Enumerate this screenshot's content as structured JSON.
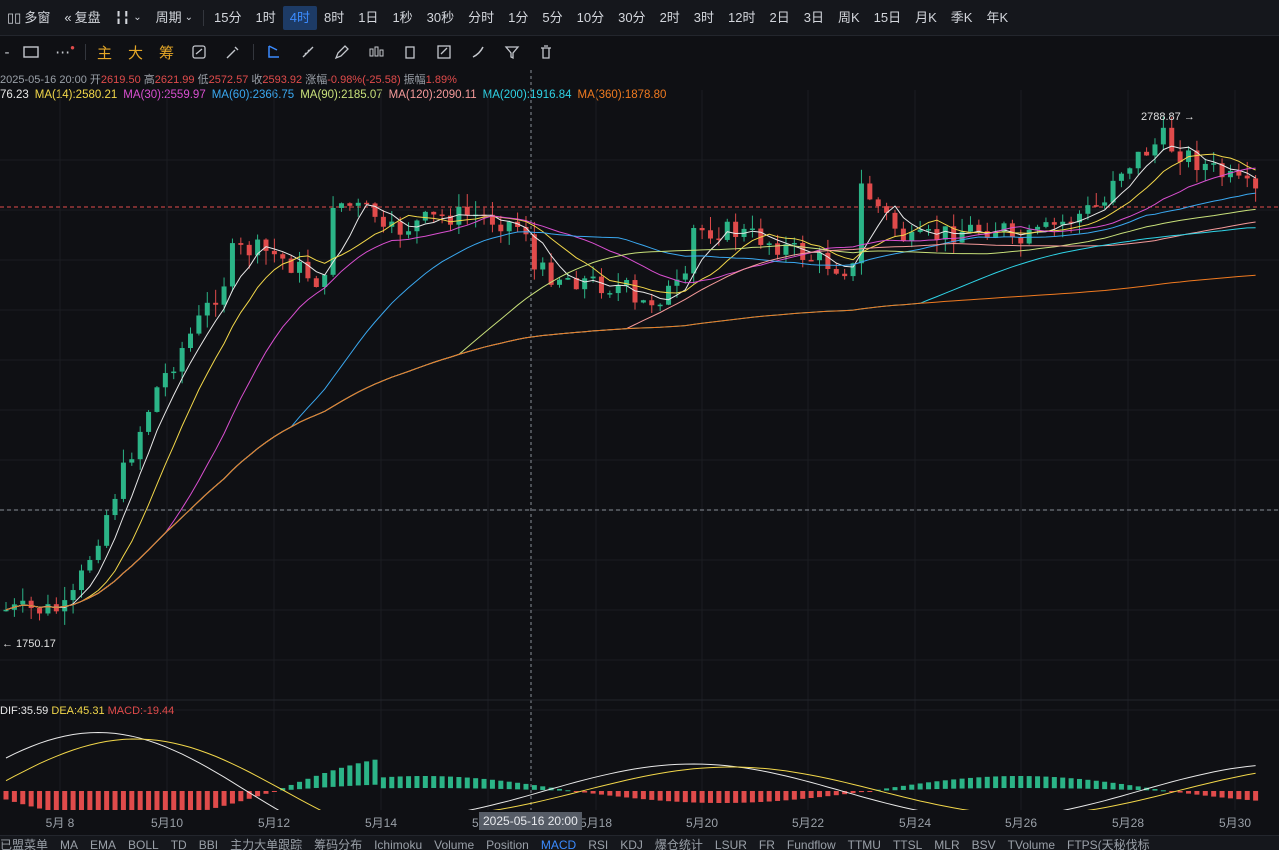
{
  "toolbar": {
    "multi_window": "多窗",
    "replay": "复盘",
    "period": "周期",
    "intervals": [
      "15分",
      "1时",
      "4时",
      "8时",
      "1日",
      "1秒",
      "30秒",
      "分时",
      "1分",
      "5分",
      "10分",
      "30分",
      "2时",
      "3时",
      "12时",
      "2日",
      "3日",
      "周K",
      "15日",
      "月K",
      "季K",
      "年K"
    ],
    "active_interval": "4时"
  },
  "toolbar2": {
    "chars": [
      "主",
      "大",
      "筹"
    ]
  },
  "info": {
    "date": "2025-05-16 20:00",
    "open_label": "开",
    "open": "2619.50",
    "high_label": "高",
    "high": "2621.99",
    "low_label": "低",
    "low": "2572.57",
    "close_label": "收",
    "close": "2593.92",
    "change_label": "涨幅",
    "change": "-0.98%(-25.58)",
    "amp_label": "振幅",
    "amp": "1.89%"
  },
  "ma": [
    {
      "label": "76.23",
      "color": "#e8e8e8"
    },
    {
      "label": "MA(14):2580.21",
      "color": "#f2d74a"
    },
    {
      "label": "MA(30):2559.97",
      "color": "#d94fd0"
    },
    {
      "label": "MA(60):2366.75",
      "color": "#3aa8f0"
    },
    {
      "label": "MA(90):2185.07",
      "color": "#c8e07a"
    },
    {
      "label": "MA(120):2090.11",
      "color": "#f59a9a"
    },
    {
      "label": "MA(200):1916.84",
      "color": "#2fd3e6"
    },
    {
      "label": "MA(360):1878.80",
      "color": "#f07a20"
    }
  ],
  "macd": {
    "dif": "DIF:35.59",
    "dea": "DEA:45.31",
    "macd": "MACD:-19.44",
    "dif_color": "#e8e8e8",
    "dea_color": "#f2d74a",
    "macd_color": "#e04b4b"
  },
  "price_labels": {
    "high_marker": "2788.87",
    "low_marker": "1750.17"
  },
  "xaxis": {
    "labels": [
      "5月 8",
      "5月10",
      "5月12",
      "5月14",
      "5月16",
      "5月18",
      "5月20",
      "5月22",
      "5月24",
      "5月26",
      "5月28",
      "5月30"
    ],
    "crosshair_label": "2025-05-16 20:00"
  },
  "bottom_tabs": [
    "已盟菜单",
    "MA",
    "EMA",
    "BOLL",
    "TD",
    "BBI",
    "主力大单跟踪",
    "筹码分布",
    "Ichimoku",
    "Volume",
    "Position",
    "MACD",
    "RSI",
    "KDJ",
    "爆仓统计",
    "LSUR",
    "FR",
    "Fundflow",
    "TTMU",
    "TTSL",
    "MLR",
    "BSV",
    "TVolume",
    "FTPS(天秘伐标"
  ],
  "active_bottom": "MACD",
  "colors": {
    "up": "#2bb487",
    "down": "#e04b4b",
    "accent": "#3b8bff"
  }
}
